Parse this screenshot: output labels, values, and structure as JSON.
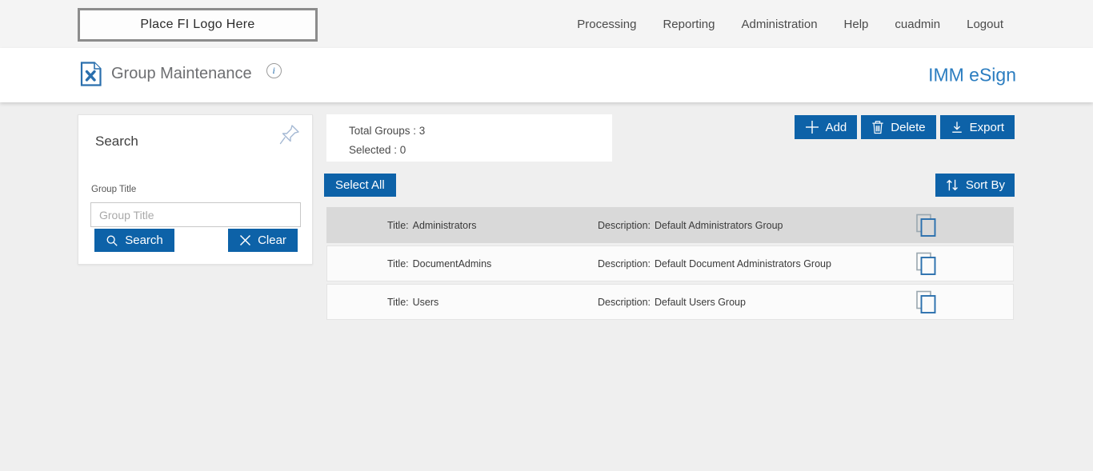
{
  "topbar": {
    "logo_text": "Place FI Logo Here",
    "nav_items": [
      "Processing",
      "Reporting",
      "Administration",
      "Help",
      "cuadmin",
      "Logout"
    ]
  },
  "header": {
    "page_title": "Group Maintenance",
    "info_icon_glyph": "i",
    "brand": "IMM eSign"
  },
  "search_panel": {
    "title": "Search",
    "group_title_label": "Group Title",
    "group_title_placeholder": "Group Title",
    "group_title_value": "",
    "search_button": "Search",
    "clear_button": "Clear"
  },
  "summary": {
    "total_groups": "Total Groups : 3",
    "selected": "Selected : 0"
  },
  "toolbar": {
    "add": "Add",
    "delete": "Delete",
    "export": "Export",
    "select_all": "Select All",
    "sort_by": "Sort By"
  },
  "groups": {
    "row_labels": {
      "title": "Title:",
      "description": "Description:"
    },
    "rows": [
      {
        "title": "Administrators",
        "description": "Default Administrators Group",
        "selected": true
      },
      {
        "title": "DocumentAdmins",
        "description": "Default Document Administrators Group",
        "selected": false
      },
      {
        "title": "Users",
        "description": "Default Users Group",
        "selected": false
      }
    ]
  },
  "colors": {
    "primary_button_blue": "#0d62a8",
    "brand_blue": "#2b7dc0",
    "selected_row_gray": "#d9d9d9",
    "topbar_gray": "#f4f4f4"
  }
}
